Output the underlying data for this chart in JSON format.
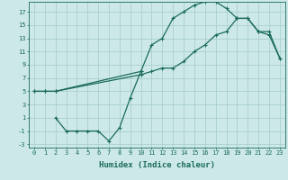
{
  "xlabel": "Humidex (Indice chaleur)",
  "bg_color": "#cce8e8",
  "grid_color": "#aacfcf",
  "line_color": "#1a6b5a",
  "xlim": [
    -0.5,
    23.5
  ],
  "ylim": [
    -3.5,
    18.5
  ],
  "xticks": [
    0,
    1,
    2,
    3,
    4,
    5,
    6,
    7,
    8,
    9,
    10,
    11,
    12,
    13,
    14,
    15,
    16,
    17,
    18,
    19,
    20,
    21,
    22,
    23
  ],
  "yticks": [
    -3,
    -1,
    1,
    3,
    5,
    7,
    9,
    11,
    13,
    15,
    17
  ],
  "curve1_x": [
    0,
    1,
    2,
    10,
    11,
    12,
    13,
    14,
    15,
    16,
    17,
    18,
    19,
    20,
    21,
    22,
    23
  ],
  "curve1_y": [
    5,
    5,
    5,
    8,
    12,
    13,
    16,
    17,
    18,
    18.5,
    18.5,
    17.5,
    16,
    16,
    14,
    14,
    10
  ],
  "curve2_x": [
    0,
    1,
    2,
    10,
    11,
    12,
    13,
    14,
    15,
    16,
    17,
    18,
    19,
    20,
    21,
    22,
    23
  ],
  "curve2_y": [
    5,
    5,
    5,
    7.5,
    8,
    8.5,
    8.5,
    9.5,
    11,
    12,
    13.5,
    14,
    16,
    16,
    14,
    13.5,
    10
  ],
  "curve3_x": [
    2,
    3,
    4,
    5,
    6,
    7,
    8,
    9,
    10
  ],
  "curve3_y": [
    1,
    -1,
    -1,
    -1,
    -1,
    -2.5,
    -0.5,
    4,
    8
  ]
}
